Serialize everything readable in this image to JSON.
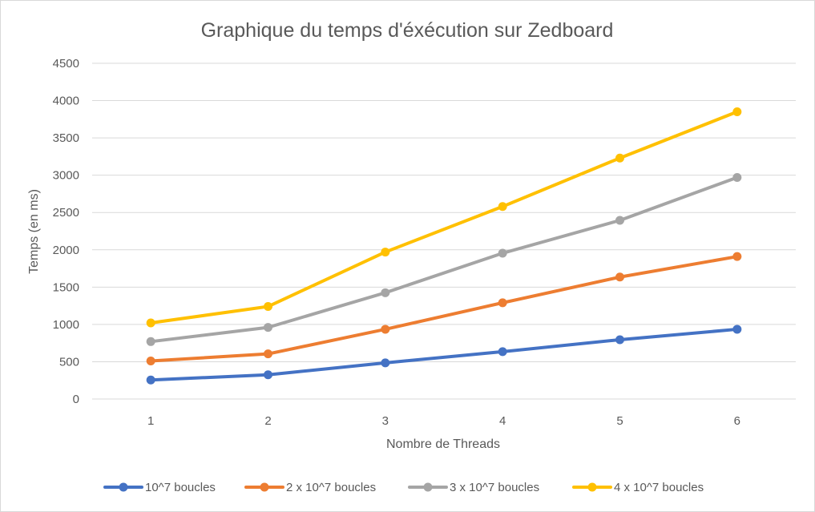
{
  "chart_data": {
    "type": "line",
    "title": "Graphique du temps d'éxécution sur Zedboard",
    "xlabel": "Nombre de Threads",
    "ylabel": "Temps (en ms)",
    "x": [
      "1",
      "2",
      "3",
      "4",
      "5",
      "6"
    ],
    "ylim": [
      0,
      4500
    ],
    "yticks": [
      0,
      500,
      1000,
      1500,
      2000,
      2500,
      3000,
      3500,
      4000,
      4500
    ],
    "grid": "horizontal",
    "legend_position": "bottom",
    "series": [
      {
        "name": "10^7 boucles",
        "color": "#4472c4",
        "values": [
          255,
          325,
          485,
          635,
          795,
          935
        ]
      },
      {
        "name": "2 x 10^7 boucles",
        "color": "#ed7d31",
        "values": [
          510,
          605,
          935,
          1290,
          1635,
          1910
        ]
      },
      {
        "name": "3 x 10^7 boucles",
        "color": "#a5a5a5",
        "values": [
          770,
          960,
          1425,
          1955,
          2395,
          2970
        ]
      },
      {
        "name": "4 x 10^7 boucles",
        "color": "#ffc000",
        "values": [
          1020,
          1240,
          1970,
          2580,
          3230,
          3850
        ]
      }
    ]
  }
}
